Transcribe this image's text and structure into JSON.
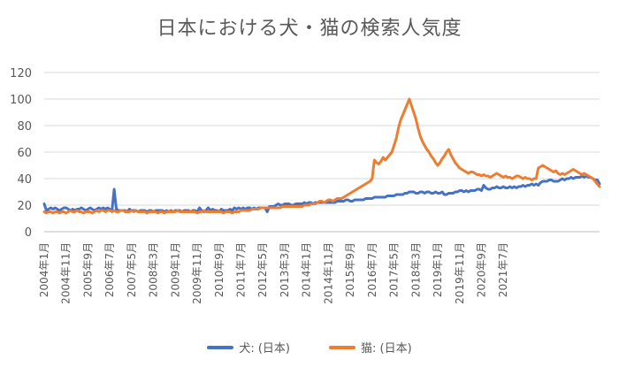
{
  "chart_data": {
    "type": "line",
    "title": "日本における犬・猫の検索人気度",
    "xlabel": "",
    "ylabel": "",
    "ylim": [
      0,
      120
    ],
    "yticks": [
      0,
      20,
      40,
      60,
      80,
      100,
      120
    ],
    "grid": true,
    "legend_position": "bottom",
    "x_start": "2004-01",
    "x_tick_labels": [
      "2004年1月",
      "2004年11月",
      "2005年9月",
      "2006年7月",
      "2007年5月",
      "2008年3月",
      "2009年1月",
      "2009年11月",
      "2010年9月",
      "2011年7月",
      "2012年5月",
      "2013年3月",
      "2014年1月",
      "2014年11月",
      "2015年9月",
      "2016年7月",
      "2017年5月",
      "2018年3月",
      "2019年1月",
      "2019年11月",
      "2020年9月",
      "2021年7月"
    ],
    "series": [
      {
        "name": "犬: (日本)",
        "color": "#4472C4",
        "values": [
          21,
          16,
          17,
          18,
          17,
          18,
          17,
          16,
          17,
          18,
          18,
          17,
          16,
          17,
          16,
          17,
          17,
          18,
          17,
          16,
          17,
          18,
          17,
          16,
          17,
          18,
          17,
          18,
          17,
          18,
          17,
          16,
          32,
          17,
          16,
          16,
          16,
          16,
          15,
          17,
          16,
          16,
          16,
          15,
          16,
          16,
          16,
          15,
          16,
          16,
          15,
          16,
          16,
          16,
          16,
          15,
          16,
          15,
          16,
          15,
          16,
          16,
          16,
          15,
          16,
          16,
          16,
          15,
          16,
          16,
          15,
          18,
          16,
          15,
          16,
          18,
          16,
          17,
          16,
          16,
          15,
          17,
          16,
          16,
          16,
          17,
          16,
          18,
          17,
          18,
          17,
          18,
          17,
          18,
          18,
          17,
          18,
          17,
          18,
          18,
          18,
          18,
          15,
          19,
          19,
          19,
          20,
          21,
          20,
          20,
          21,
          21,
          21,
          20,
          20,
          21,
          21,
          21,
          21,
          22,
          21,
          22,
          22,
          21,
          22,
          22,
          22,
          22,
          22,
          22,
          22,
          22,
          22,
          22,
          23,
          23,
          23,
          23,
          24,
          24,
          23,
          23,
          24,
          24,
          24,
          24,
          24,
          25,
          25,
          25,
          25,
          26,
          26,
          26,
          26,
          26,
          26,
          27,
          27,
          27,
          27,
          28,
          28,
          28,
          28,
          29,
          29,
          30,
          30,
          30,
          29,
          29,
          30,
          30,
          29,
          30,
          30,
          29,
          29,
          30,
          29,
          29,
          30,
          28,
          28,
          29,
          29,
          29,
          30,
          30,
          31,
          31,
          30,
          31,
          30,
          31,
          31,
          31,
          32,
          32,
          31,
          35,
          33,
          32,
          32,
          33,
          33,
          34,
          33,
          33,
          34,
          33,
          33,
          34,
          33,
          34,
          33,
          34,
          34,
          35,
          34,
          35,
          35,
          36,
          35,
          36,
          35,
          37,
          38,
          38,
          38,
          39,
          39,
          38,
          38,
          38,
          39,
          40,
          39,
          40,
          40,
          41,
          40,
          41,
          41,
          41,
          42,
          41,
          42,
          41,
          41,
          40,
          39,
          39,
          36
        ]
      },
      {
        "name": "猫: (日本)",
        "color": "#ED7D31",
        "values": [
          15,
          14,
          15,
          15,
          14,
          15,
          15,
          14,
          15,
          15,
          14,
          15,
          16,
          15,
          15,
          16,
          15,
          15,
          14,
          15,
          15,
          15,
          14,
          15,
          16,
          15,
          16,
          16,
          15,
          16,
          16,
          15,
          16,
          15,
          15,
          16,
          16,
          15,
          15,
          15,
          16,
          15,
          16,
          15,
          15,
          15,
          15,
          14,
          15,
          15,
          15,
          15,
          14,
          15,
          15,
          14,
          15,
          15,
          15,
          15,
          15,
          16,
          15,
          15,
          15,
          15,
          15,
          15,
          15,
          15,
          14,
          15,
          15,
          16,
          15,
          15,
          15,
          15,
          15,
          15,
          15,
          15,
          14,
          15,
          15,
          15,
          14,
          15,
          15,
          15,
          16,
          16,
          16,
          16,
          16,
          17,
          17,
          17,
          17,
          18,
          18,
          18,
          18,
          18,
          18,
          18,
          18,
          18,
          18,
          19,
          19,
          19,
          19,
          19,
          19,
          19,
          19,
          19,
          19,
          20,
          20,
          20,
          21,
          21,
          21,
          22,
          23,
          23,
          22,
          23,
          24,
          24,
          23,
          24,
          25,
          25,
          25,
          26,
          27,
          28,
          29,
          30,
          31,
          32,
          33,
          34,
          35,
          36,
          37,
          38,
          40,
          54,
          52,
          51,
          53,
          56,
          54,
          56,
          58,
          60,
          65,
          70,
          78,
          84,
          88,
          92,
          96,
          100,
          95,
          90,
          85,
          78,
          72,
          68,
          65,
          62,
          60,
          57,
          55,
          52,
          50,
          52,
          55,
          57,
          60,
          62,
          58,
          55,
          52,
          50,
          48,
          47,
          46,
          45,
          44,
          45,
          45,
          44,
          43,
          43,
          42,
          43,
          42,
          42,
          41,
          42,
          43,
          44,
          43,
          42,
          41,
          42,
          41,
          41,
          40,
          41,
          42,
          42,
          41,
          40,
          41,
          40,
          40,
          39,
          40,
          40,
          48,
          49,
          50,
          49,
          48,
          47,
          46,
          45,
          46,
          44,
          43,
          44,
          43,
          44,
          45,
          46,
          47,
          46,
          45,
          44,
          43,
          44,
          43,
          42,
          41,
          40,
          38,
          36,
          34
        ]
      }
    ]
  }
}
